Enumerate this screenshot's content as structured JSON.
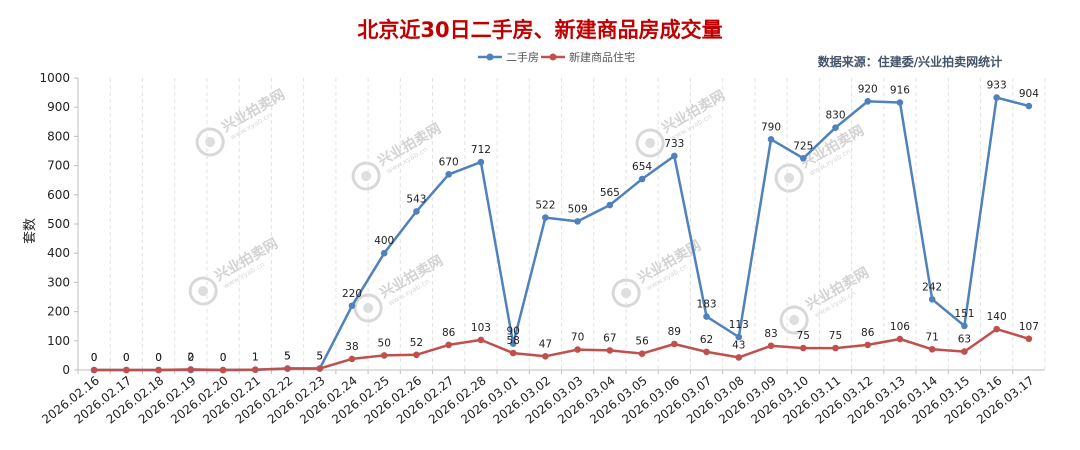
{
  "page": {
    "title": "北京近30日二手房、新建商品房成交量",
    "source": "数据来源：住建委/兴业拍卖网统计",
    "watermark_text": "兴业拍卖网",
    "watermark_sub": "www.xyab.cn",
    "title_color": "#c00000",
    "source_color": "#44546a"
  },
  "chart_data": {
    "type": "line",
    "title": "北京近30日二手房、新建商品房成交量",
    "xlabel": "",
    "ylabel": "套数",
    "ylim": [
      0,
      1000
    ],
    "yticks": [
      0,
      100,
      200,
      300,
      400,
      500,
      600,
      700,
      800,
      900,
      1000
    ],
    "grid": "vertical dashed",
    "legend": "top-center",
    "categories": [
      "2026.02.16",
      "2026.02.17",
      "2026.02.18",
      "2026.02.19",
      "2026.02.20",
      "2026.02.21",
      "2026.02.22",
      "2026.02.23",
      "2026.02.24",
      "2026.02.25",
      "2026.02.26",
      "2026.02.27",
      "2026.02.28",
      "2026.03.01",
      "2026.03.02",
      "2026.03.03",
      "2026.03.04",
      "2026.03.05",
      "2026.03.06",
      "2026.03.07",
      "2026.03.08",
      "2026.03.09",
      "2026.03.10",
      "2026.03.11",
      "2026.03.12",
      "2026.03.13",
      "2026.03.14",
      "2026.03.15",
      "2026.03.16",
      "2026.03.17"
    ],
    "series": [
      {
        "name": "二手房",
        "color": "#4f81bd",
        "values": [
          0,
          0,
          0,
          0,
          0,
          1,
          5,
          5,
          220,
          400,
          543,
          670,
          712,
          90,
          522,
          509,
          565,
          654,
          733,
          183,
          113,
          790,
          725,
          830,
          920,
          916,
          242,
          151,
          933,
          904
        ]
      },
      {
        "name": "新建商品住宅",
        "color": "#c0504d",
        "values": [
          0,
          0,
          0,
          2,
          0,
          1,
          5,
          5,
          38,
          50,
          52,
          86,
          103,
          58,
          47,
          70,
          67,
          56,
          89,
          62,
          43,
          83,
          75,
          75,
          86,
          106,
          71,
          63,
          140,
          107
        ]
      }
    ]
  }
}
